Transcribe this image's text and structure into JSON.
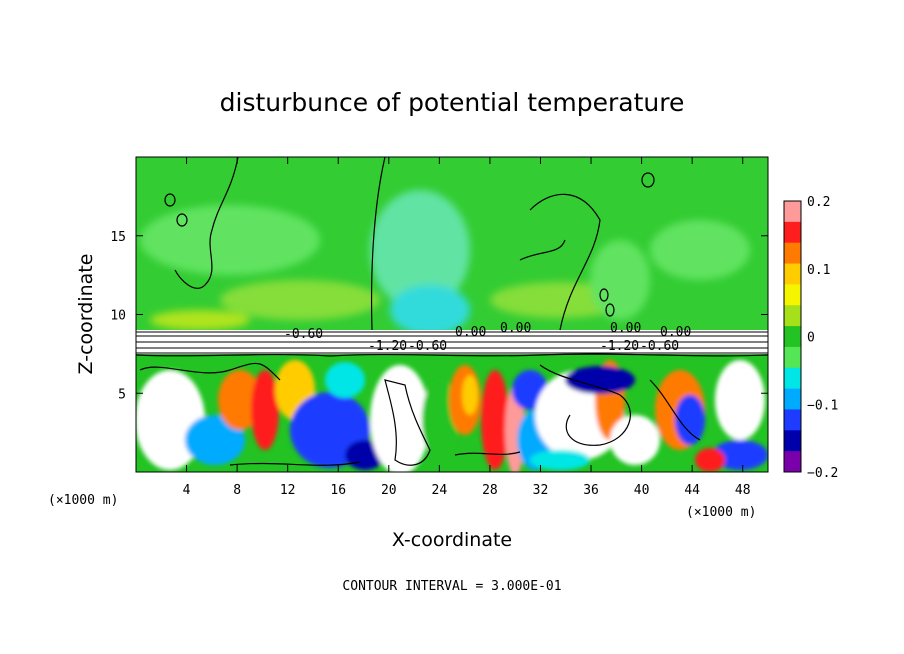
{
  "chart_data": {
    "type": "heatmap",
    "title": "disturbunce of potential temperature",
    "xlabel": "X-coordinate",
    "ylabel": "Z-coordinate",
    "x_unit": "(×1000 m)",
    "x_unit_right": "(×1000 m)",
    "xlim": [
      0,
      50
    ],
    "ylim": [
      0,
      20
    ],
    "x_ticks": [
      4,
      8,
      12,
      16,
      20,
      24,
      28,
      32,
      36,
      40,
      44,
      48
    ],
    "y_ticks": [
      5,
      10,
      15
    ],
    "colorbar": {
      "min": -0.2,
      "max": 0.2,
      "ticks": [
        0.2,
        0.1,
        0,
        -0.1,
        -0.2
      ],
      "tick_labels": [
        "0.2",
        "0.1",
        "0",
        "−0.1",
        "−0.2"
      ],
      "colors": [
        "#ff9a9a",
        "#ff1e1e",
        "#ff7a00",
        "#ffcc00",
        "#f5f500",
        "#a6e01a",
        "#22c322",
        "#55e655",
        "#00e6e6",
        "#00aaff",
        "#1e3cff",
        "#0000aa",
        "#7a00aa"
      ]
    },
    "contour_labels": [
      "-0.60",
      "-1.20",
      "-0.60",
      "-1.20",
      "-0.60",
      "0.00",
      "0.00",
      "0.00",
      "0.00"
    ],
    "annotation": "CONTOUR INTERVAL = 3.000E-01"
  }
}
